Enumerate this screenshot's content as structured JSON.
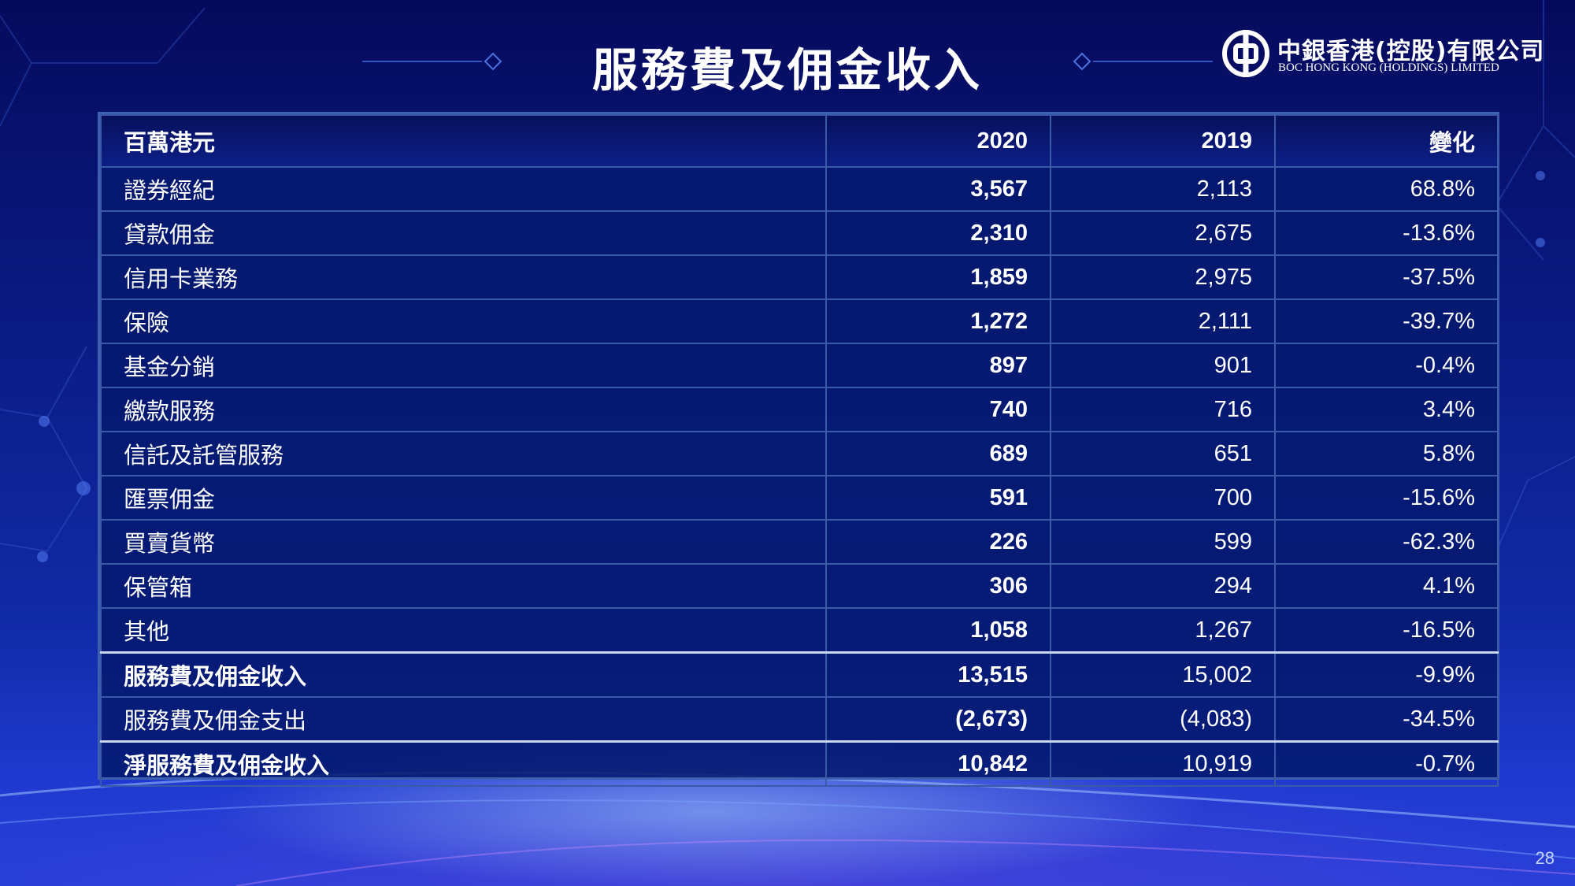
{
  "slide": {
    "title": "服務費及佣金收入",
    "page_number": "28"
  },
  "logo": {
    "name_cn": "中銀香港(控股)有限公司",
    "name_en": "BOC HONG KONG (HOLDINGS) LIMITED"
  },
  "table": {
    "headers": [
      "百萬港元",
      "2020",
      "2019",
      "變化"
    ],
    "rows": [
      [
        "證券經紀",
        "3,567",
        "2,113",
        "68.8%"
      ],
      [
        "貸款佣金",
        "2,310",
        "2,675",
        "-13.6%"
      ],
      [
        "信用卡業務",
        "1,859",
        "2,975",
        "-37.5%"
      ],
      [
        "保險",
        "1,272",
        "2,111",
        "-39.7%"
      ],
      [
        "基金分銷",
        "897",
        "901",
        "-0.4%"
      ],
      [
        "繳款服務",
        "740",
        "716",
        "3.4%"
      ],
      [
        "信託及託管服務",
        "689",
        "651",
        "5.8%"
      ],
      [
        "匯票佣金",
        "591",
        "700",
        "-15.6%"
      ],
      [
        "買賣貨幣",
        "226",
        "599",
        "-62.3%"
      ],
      [
        "保管箱",
        "306",
        "294",
        "4.1%"
      ],
      [
        "其他",
        "1,058",
        "1,267",
        "-16.5%"
      ],
      [
        "服務費及佣金收入",
        "13,515",
        "15,002",
        "-9.9%"
      ],
      [
        "服務費及佣金支出",
        "(2,673)",
        "(4,083)",
        "-34.5%"
      ],
      [
        "淨服務費及佣金收入",
        "10,842",
        "10,919",
        "-0.7%"
      ]
    ]
  },
  "colors": {
    "background": "#0a1a82",
    "table_border": "#3a5aa8",
    "text": "#ffffff"
  }
}
